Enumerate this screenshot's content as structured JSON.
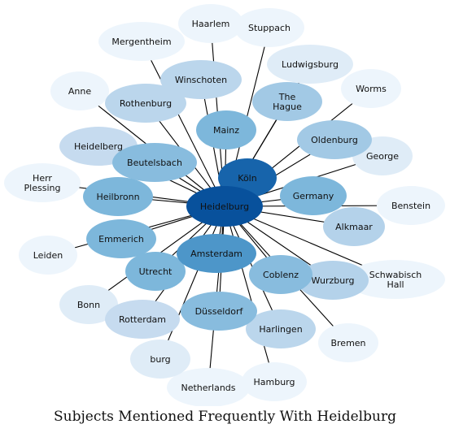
{
  "title": "Subjects Mentioned Frequently With Heidelburg",
  "center": "Heidelburg",
  "nodes": [
    {
      "id": "heidelburg",
      "lines": [
        "Heidelburg"
      ],
      "weight": 1.0
    },
    {
      "id": "koln",
      "lines": [
        "Köln"
      ],
      "weight": 0.85
    },
    {
      "id": "amsterdam",
      "lines": [
        "Amsterdam"
      ],
      "weight": 0.6
    },
    {
      "id": "mainz",
      "lines": [
        "Mainz"
      ],
      "weight": 0.45
    },
    {
      "id": "heilbronn",
      "lines": [
        "Heilbronn"
      ],
      "weight": 0.45
    },
    {
      "id": "germany",
      "lines": [
        "Germany"
      ],
      "weight": 0.45
    },
    {
      "id": "emmerich",
      "lines": [
        "Emmerich"
      ],
      "weight": 0.45
    },
    {
      "id": "utrecht",
      "lines": [
        "Utrecht"
      ],
      "weight": 0.45
    },
    {
      "id": "beutelsbach",
      "lines": [
        "Beutelsbach"
      ],
      "weight": 0.42
    },
    {
      "id": "coblenz",
      "lines": [
        "Coblenz"
      ],
      "weight": 0.42
    },
    {
      "id": "dusseldorf",
      "lines": [
        "Düsseldorf"
      ],
      "weight": 0.42
    },
    {
      "id": "the-hague",
      "lines": [
        "The",
        "Hague"
      ],
      "weight": 0.35
    },
    {
      "id": "oldenburg",
      "lines": [
        "Oldenburg"
      ],
      "weight": 0.35
    },
    {
      "id": "alkmaar",
      "lines": [
        "Alkmaar"
      ],
      "weight": 0.3
    },
    {
      "id": "wurzburg",
      "lines": [
        "Wurzburg"
      ],
      "weight": 0.3
    },
    {
      "id": "harlingen",
      "lines": [
        "Harlingen"
      ],
      "weight": 0.28
    },
    {
      "id": "rotterdam",
      "lines": [
        "Rotterdam"
      ],
      "weight": 0.25
    },
    {
      "id": "rothenburg",
      "lines": [
        "Rothenburg"
      ],
      "weight": 0.28
    },
    {
      "id": "winschoten",
      "lines": [
        "Winschoten"
      ],
      "weight": 0.28
    },
    {
      "id": "heidelberg",
      "lines": [
        "Heidelberg"
      ],
      "weight": 0.25
    },
    {
      "id": "ludwigsburg",
      "lines": [
        "Ludwigsburg"
      ],
      "weight": 0.12
    },
    {
      "id": "george",
      "lines": [
        "George"
      ],
      "weight": 0.12
    },
    {
      "id": "bonn",
      "lines": [
        "Bonn"
      ],
      "weight": 0.12
    },
    {
      "id": "burg",
      "lines": [
        "burg"
      ],
      "weight": 0.12
    },
    {
      "id": "mergentheim",
      "lines": [
        "Mergentheim"
      ],
      "weight": 0.05
    },
    {
      "id": "haarlem",
      "lines": [
        "Haarlem"
      ],
      "weight": 0.05
    },
    {
      "id": "stuppach",
      "lines": [
        "Stuppach"
      ],
      "weight": 0.05
    },
    {
      "id": "worms",
      "lines": [
        "Worms"
      ],
      "weight": 0.05
    },
    {
      "id": "anne",
      "lines": [
        "Anne"
      ],
      "weight": 0.05
    },
    {
      "id": "herr-plessing",
      "lines": [
        "Herr",
        "Plessing"
      ],
      "weight": 0.05
    },
    {
      "id": "benstein",
      "lines": [
        "Benstein"
      ],
      "weight": 0.05
    },
    {
      "id": "leiden",
      "lines": [
        "Leiden"
      ],
      "weight": 0.05
    },
    {
      "id": "schwabisch-hall",
      "lines": [
        "Schwabisch",
        "Hall"
      ],
      "weight": 0.05
    },
    {
      "id": "bremen",
      "lines": [
        "Bremen"
      ],
      "weight": 0.05
    },
    {
      "id": "hamburg",
      "lines": [
        "Hamburg"
      ],
      "weight": 0.05
    },
    {
      "id": "netherlands",
      "lines": [
        "Netherlands"
      ],
      "weight": 0.05
    }
  ]
}
